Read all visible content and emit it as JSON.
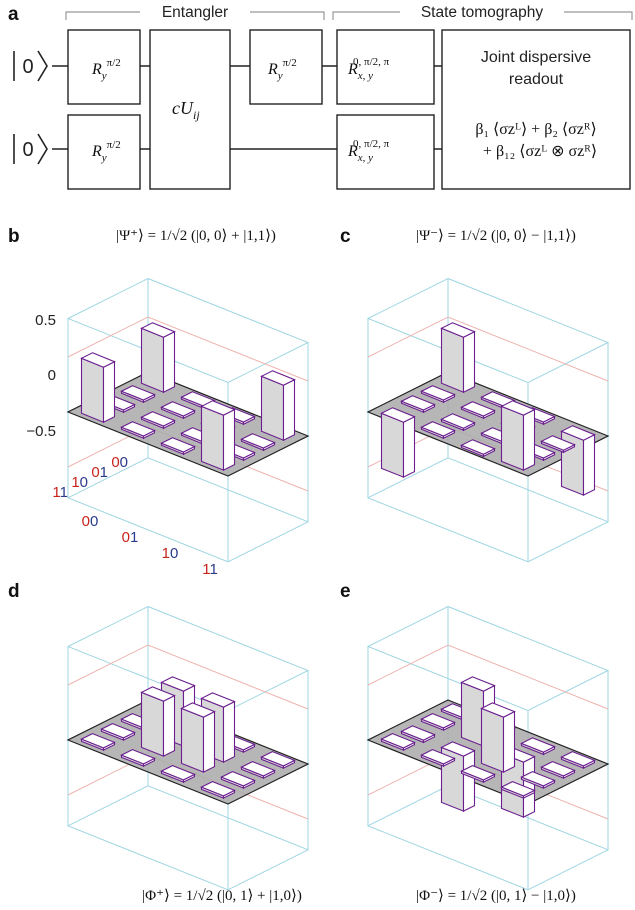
{
  "panel_a": {
    "letter": "a",
    "header_entangler": "Entangler",
    "header_tomography": "State tomography",
    "ket_top": "0",
    "ket_bottom": "0",
    "gate_ry_base": "R",
    "gate_ry_sub": "y",
    "gate_ry_sup": "π/2",
    "gate_cu": "cU",
    "gate_cu_sub": "ij",
    "gate_rxy_base": "R",
    "gate_rxy_sub": "x, y",
    "gate_rxy_sup": "0, π/2, π",
    "readout_line1": "Joint dispersive",
    "readout_line2": "readout",
    "readout_eq1": "β₁ ⟨σzᴸ⟩ + β₂ ⟨σzᴿ⟩",
    "readout_eq2": "+ β₁₂ ⟨σzᴸ ⊗ σzᴿ⟩",
    "colors": {
      "ket_top": "#c8241d",
      "ket_bottom": "#2b3a8c"
    }
  },
  "panels": [
    {
      "letter": "b",
      "caption": "|Ψ⁺⟩ = 1/√2 (|0, 0⟩ + |1,1⟩)"
    },
    {
      "letter": "c",
      "caption": "|Ψ⁻⟩ = 1/√2 (|0, 0⟩ − |1,1⟩)"
    },
    {
      "letter": "d",
      "caption": "|Φ⁺⟩ = 1/√2 (|0, 1⟩ + |1,0⟩)"
    },
    {
      "letter": "e",
      "caption": "|Φ⁻⟩ = 1/√2 (|0, 1⟩ − |1,0⟩)"
    }
  ],
  "chart_data": [
    {
      "type": "bar3d",
      "title": "|Ψ⁺⟩ = 1/√2 (|0, 0⟩ + |1,1⟩)",
      "row_labels": [
        "00",
        "01",
        "10",
        "11"
      ],
      "col_labels": [
        "00",
        "01",
        "10",
        "11"
      ],
      "zlim": [
        -0.5,
        0.5
      ],
      "z_ticks": [
        "0.5",
        "0",
        "−0.5"
      ],
      "values": [
        [
          0.5,
          0.02,
          0.02,
          0.5
        ],
        [
          0.02,
          0.02,
          0.02,
          0.02
        ],
        [
          0.02,
          0.02,
          0.02,
          0.02
        ],
        [
          0.5,
          0.02,
          0.02,
          0.5
        ]
      ]
    },
    {
      "type": "bar3d",
      "title": "|Ψ⁻⟩ = 1/√2 (|0, 0⟩ − |1,1⟩)",
      "row_labels": [
        "00",
        "01",
        "10",
        "11"
      ],
      "col_labels": [
        "00",
        "01",
        "10",
        "11"
      ],
      "zlim": [
        -0.5,
        0.5
      ],
      "values": [
        [
          0.5,
          0.02,
          0.02,
          -0.5
        ],
        [
          0.02,
          0.02,
          0.02,
          -0.02
        ],
        [
          0.02,
          -0.02,
          0.02,
          0.02
        ],
        [
          -0.5,
          0.02,
          -0.02,
          0.5
        ]
      ]
    },
    {
      "type": "bar3d",
      "title": "|Φ⁺⟩ = 1/√2 (|0, 1⟩ + |1,0⟩)",
      "row_labels": [
        "00",
        "01",
        "10",
        "11"
      ],
      "col_labels": [
        "00",
        "01",
        "10",
        "11"
      ],
      "zlim": [
        -0.5,
        0.5
      ],
      "values": [
        [
          0.02,
          -0.02,
          0.02,
          0.02
        ],
        [
          0.02,
          0.5,
          0.5,
          0.02
        ],
        [
          0.02,
          0.5,
          0.5,
          0.02
        ],
        [
          0.02,
          0.02,
          0.02,
          0.02
        ]
      ]
    },
    {
      "type": "bar3d",
      "title": "|Φ⁻⟩ = 1/√2 (|0, 1⟩ − |1,0⟩)",
      "row_labels": [
        "00",
        "01",
        "10",
        "11"
      ],
      "col_labels": [
        "00",
        "01",
        "10",
        "11"
      ],
      "zlim": [
        -0.5,
        0.5
      ],
      "values": [
        [
          0.02,
          0.02,
          -0.02,
          0.02
        ],
        [
          0.02,
          0.5,
          -0.5,
          0.02
        ],
        [
          -0.02,
          -0.5,
          0.5,
          0.02
        ],
        [
          0.02,
          0.02,
          0.02,
          0.02
        ]
      ]
    }
  ],
  "colors": {
    "bar_face": "#ffffff",
    "bar_edge": "#6a1f8e",
    "bar_side": "#d8d8d8",
    "floor": "#a9a9a9",
    "floor_edge": "#222222",
    "box": "#9fd6e3",
    "grid_red": "#efb3b0",
    "tick_red": "#c8241d",
    "tick_blue": "#2b3a8c"
  }
}
